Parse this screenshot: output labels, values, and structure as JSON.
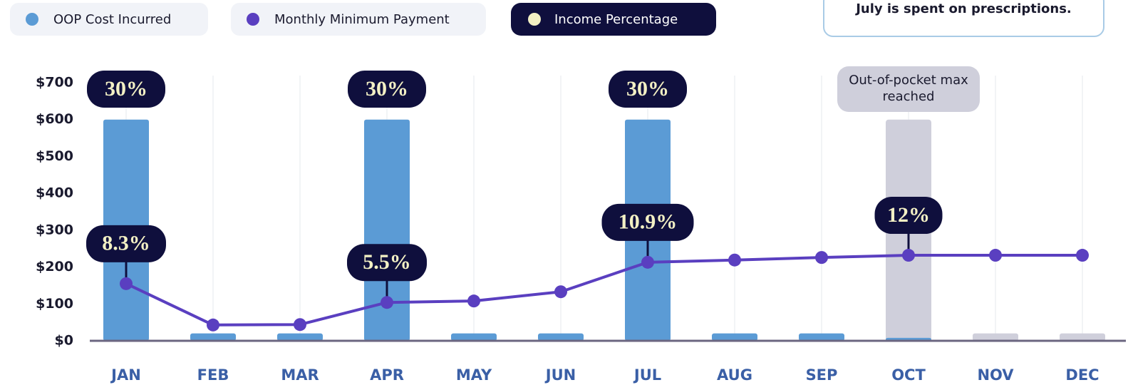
{
  "chart_data": {
    "type": "bar-line",
    "categories": [
      "JAN",
      "FEB",
      "MAR",
      "APR",
      "MAY",
      "JUN",
      "JUL",
      "AUG",
      "SEP",
      "OCT",
      "NOV",
      "DEC"
    ],
    "series": [
      {
        "name": "OOP Cost Incurred",
        "color": "#5b9bd5",
        "values": [
          600,
          20,
          20,
          600,
          20,
          20,
          600,
          20,
          20,
          8,
          20,
          20
        ],
        "colors": [
          "#5b9bd5",
          "#5b9bd5",
          "#5b9bd5",
          "#5b9bd5",
          "#5b9bd5",
          "#5b9bd5",
          "#5b9bd5",
          "#5b9bd5",
          "#5b9bd5",
          "#5b9bd5",
          "#cfcfdb",
          "#cfcfdb"
        ]
      },
      {
        "name": "Monthly Minimum Payment",
        "color": "#5a3fc0",
        "values": [
          155,
          43,
          44,
          104,
          108,
          133,
          213,
          219,
          226,
          232,
          232,
          232
        ]
      },
      {
        "name": "Income Percentage",
        "color": "#f3f0c4",
        "values": [
          8.3,
          null,
          null,
          5.5,
          null,
          null,
          10.9,
          null,
          null,
          12,
          null,
          null
        ],
        "value_labels": [
          "8.3%",
          null,
          null,
          "5.5%",
          null,
          null,
          "10.9%",
          null,
          null,
          "12%",
          null,
          null
        ],
        "bar_values": [
          30,
          null,
          null,
          30,
          null,
          null,
          30,
          null,
          null,
          null,
          null,
          null
        ],
        "bar_value_labels": [
          "30%",
          null,
          null,
          "30%",
          null,
          null,
          "30%",
          null,
          null,
          null,
          null,
          null
        ]
      }
    ],
    "ylim": [
      0,
      700
    ],
    "yticks": [
      {
        "value": 0,
        "label": "$0"
      },
      {
        "value": 100,
        "label": "$100"
      },
      {
        "value": 200,
        "label": "$200"
      },
      {
        "value": 300,
        "label": "$300"
      },
      {
        "value": 400,
        "label": "$400"
      },
      {
        "value": 500,
        "label": "$500"
      },
      {
        "value": 600,
        "label": "$600"
      },
      {
        "value": 700,
        "label": "$700"
      }
    ],
    "annotations": [
      {
        "text": "Out-of-pocket max reached",
        "category": "OCT",
        "highlight_to": 600
      }
    ],
    "callout": "July is spent on prescriptions."
  }
}
